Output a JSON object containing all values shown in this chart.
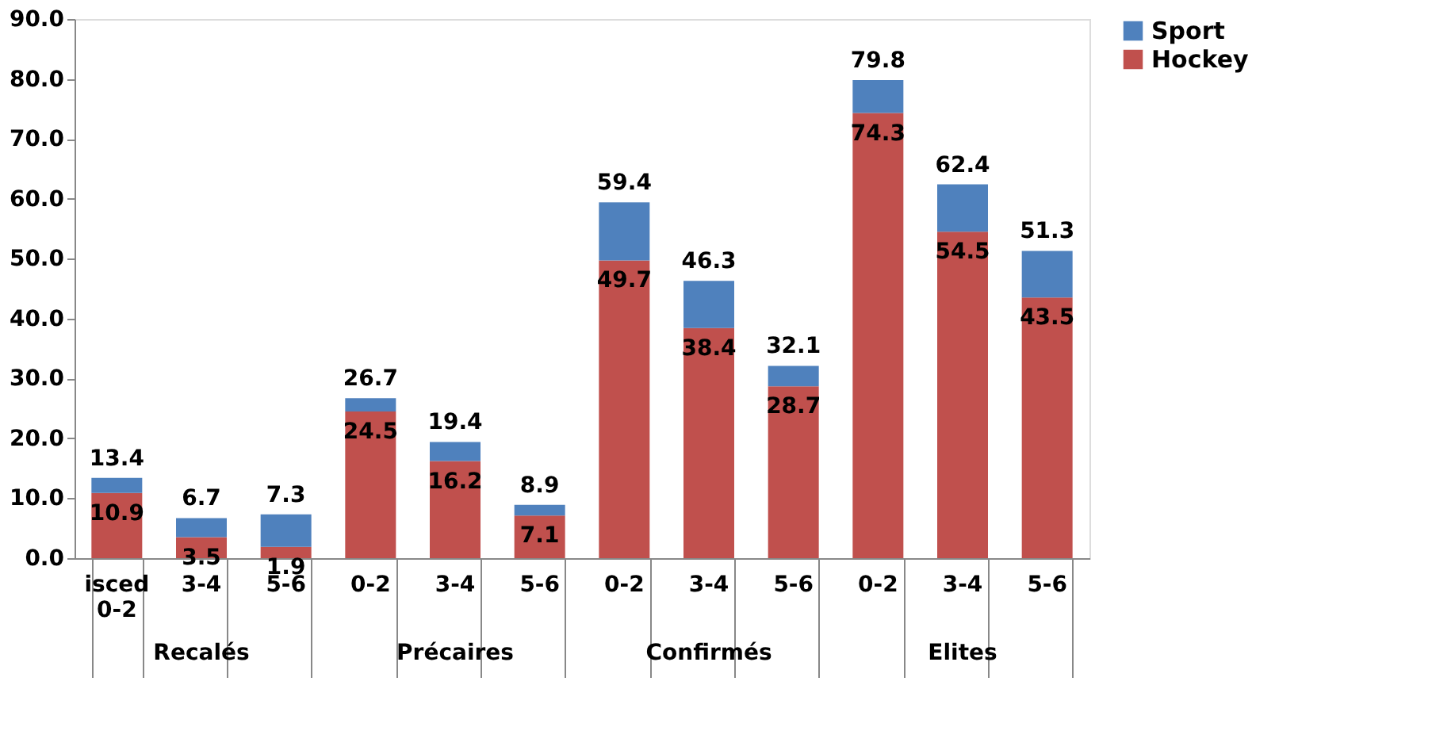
{
  "chart_data": {
    "type": "bar",
    "stacked": true,
    "categories": [
      "isced\n0-2",
      "3-4",
      "5-6",
      "0-2",
      "3-4",
      "5-6",
      "0-2",
      "3-4",
      "5-6",
      "0-2",
      "3-4",
      "5-6"
    ],
    "series": [
      {
        "name": "Hockey",
        "color": "#c0504d",
        "values": [
          10.9,
          3.5,
          1.9,
          24.5,
          16.2,
          7.1,
          49.7,
          38.4,
          28.7,
          74.3,
          54.5,
          43.5
        ],
        "value_labels": [
          "10.9",
          "3.5",
          "1.9",
          "24.5",
          "16.2",
          "7.1",
          "49.7",
          "38.4",
          "28.7",
          "74.3",
          "54.5",
          "43.5"
        ]
      },
      {
        "name": "Sport",
        "color": "#4f81bd",
        "values": [
          2.5,
          3.2,
          5.4,
          2.2,
          3.2,
          1.8,
          9.7,
          7.9,
          3.4,
          5.5,
          7.9,
          7.8
        ]
      }
    ],
    "totals": [
      "13.4",
      "6.7",
      "7.3",
      "26.7",
      "19.4",
      "8.9",
      "59.4",
      "46.3",
      "32.1",
      "79.8",
      "62.4",
      "51.3"
    ],
    "annotations": [
      "Recalés",
      "Précaires",
      "Confirmés",
      "Elites"
    ],
    "ylim": [
      0,
      90
    ],
    "yticks": [
      {
        "value": 0,
        "label": "0.0"
      },
      {
        "value": 10,
        "label": "10.0"
      },
      {
        "value": 20,
        "label": "20.0"
      },
      {
        "value": 30,
        "label": "30.0"
      },
      {
        "value": 40,
        "label": "40.0"
      },
      {
        "value": 50,
        "label": "50.0"
      },
      {
        "value": 60,
        "label": "60.0"
      },
      {
        "value": 70,
        "label": "70.0"
      },
      {
        "value": 80,
        "label": "80.0"
      },
      {
        "value": 90,
        "label": "90.0"
      }
    ],
    "grid": false,
    "legend": "right"
  }
}
